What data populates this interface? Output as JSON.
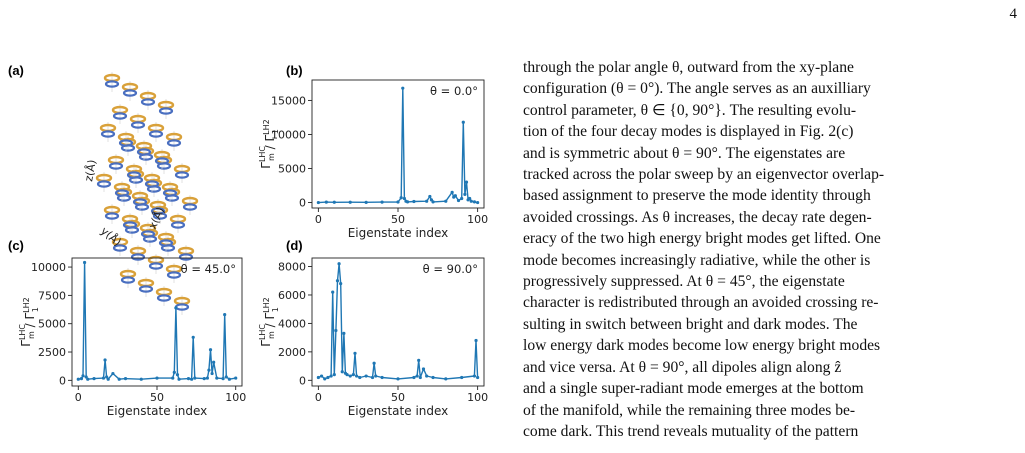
{
  "page_number": "4",
  "figure": {
    "panel_a": {
      "label": "(a)",
      "axis_labels": [
        "z(Å)",
        "x(Å)",
        "y(Å)"
      ],
      "lattice_colors": {
        "gold": "#d9a13a",
        "blue": "#4a6fc0"
      }
    }
  },
  "chart_data": [
    {
      "type": "line",
      "panel": "(b)",
      "annotation": "θ = 0.0°",
      "xlabel": "Eigenstate index",
      "ylabel": "Γm^LHC / Γ1^LH2",
      "xlim": [
        -4,
        104
      ],
      "ylim": [
        -800,
        18000
      ],
      "xticks": [
        0,
        50,
        100
      ],
      "yticks": [
        0,
        5000,
        10000,
        15000
      ],
      "color": "#1f77b4",
      "x": [
        0,
        5,
        10,
        20,
        30,
        40,
        50,
        52,
        53,
        54,
        55,
        56,
        60,
        68,
        70,
        71,
        72,
        80,
        84,
        85,
        86,
        88,
        90,
        91,
        92,
        93,
        94,
        95,
        96,
        98,
        100
      ],
      "y": [
        0,
        60,
        40,
        50,
        30,
        60,
        80,
        700,
        16800,
        600,
        200,
        100,
        150,
        200,
        900,
        400,
        100,
        200,
        1500,
        800,
        1000,
        300,
        600,
        11800,
        1200,
        3000,
        400,
        600,
        200,
        100,
        0
      ]
    },
    {
      "type": "line",
      "panel": "(c)",
      "annotation": "θ = 45.0°",
      "xlabel": "Eigenstate index",
      "ylabel": "Γm^LHC / Γ1^LH2",
      "xlim": [
        -4,
        104
      ],
      "ylim": [
        -500,
        10800
      ],
      "xticks": [
        0,
        50,
        100
      ],
      "yticks": [
        0,
        2500,
        5000,
        7500,
        10000
      ],
      "color": "#1f77b4",
      "x": [
        0,
        2,
        3,
        4,
        5,
        6,
        10,
        16,
        17,
        18,
        19,
        22,
        26,
        30,
        40,
        50,
        60,
        61,
        62,
        63,
        64,
        70,
        72,
        73,
        74,
        80,
        82,
        83,
        84,
        85,
        86,
        88,
        92,
        93,
        94,
        96,
        100
      ],
      "y": [
        100,
        150,
        400,
        10400,
        300,
        100,
        150,
        200,
        1800,
        300,
        100,
        600,
        100,
        150,
        100,
        200,
        200,
        700,
        6400,
        500,
        100,
        150,
        100,
        3800,
        200,
        150,
        200,
        900,
        2700,
        600,
        1600,
        200,
        150,
        5800,
        300,
        100,
        200
      ]
    },
    {
      "type": "line",
      "panel": "(d)",
      "annotation": "θ = 90.0°",
      "xlabel": "Eigenstate index",
      "ylabel": "Γm^LHC / Γ1^LH2",
      "xlim": [
        -4,
        104
      ],
      "ylim": [
        -400,
        8600
      ],
      "xticks": [
        0,
        50,
        100
      ],
      "yticks": [
        0,
        2000,
        4000,
        6000,
        8000
      ],
      "color": "#1f77b4",
      "x": [
        0,
        2,
        4,
        6,
        8,
        9,
        10,
        11,
        12,
        13,
        14,
        15,
        16,
        17,
        18,
        20,
        22,
        23,
        24,
        26,
        30,
        34,
        35,
        36,
        40,
        50,
        60,
        62,
        63,
        64,
        66,
        68,
        72,
        80,
        90,
        98,
        99,
        100
      ],
      "y": [
        200,
        300,
        100,
        200,
        300,
        6200,
        400,
        3500,
        7000,
        8200,
        6800,
        600,
        3300,
        500,
        400,
        300,
        400,
        1900,
        300,
        200,
        300,
        200,
        1200,
        300,
        200,
        100,
        200,
        300,
        1400,
        200,
        800,
        300,
        200,
        100,
        200,
        300,
        2800,
        200
      ]
    }
  ],
  "body_lines": [
    "through the polar angle θ, outward from the xy-plane",
    "configuration (θ = 0°). The angle serves as an auxilliary",
    "control parameter, θ ∈ {0, 90°}. The resulting evolu-",
    "tion of the four decay modes is displayed in Fig. 2(c)",
    "and is symmetric about θ = 90°. The eigenstates are",
    "tracked across the polar sweep by an eigenvector overlap-",
    "based assignment to preserve the mode identity through",
    "avoided crossings. As θ increases, the decay rate degen-",
    "eracy of the two high energy bright modes get lifted. One",
    "mode becomes increasingly radiative, while the other is",
    "progressively suppressed. At θ = 45°, the eigenstate",
    "character is redistributed through an avoided crossing re-",
    "sulting in switch between bright and dark modes. The",
    "low energy dark modes become low energy bright modes",
    "and vice versa. At θ = 90°, all dipoles align along ẑ",
    "and a single super-radiant mode emerges at the bottom",
    "of the manifold, while the remaining three modes be-",
    "come dark. This trend reveals mutuality of the pattern"
  ]
}
